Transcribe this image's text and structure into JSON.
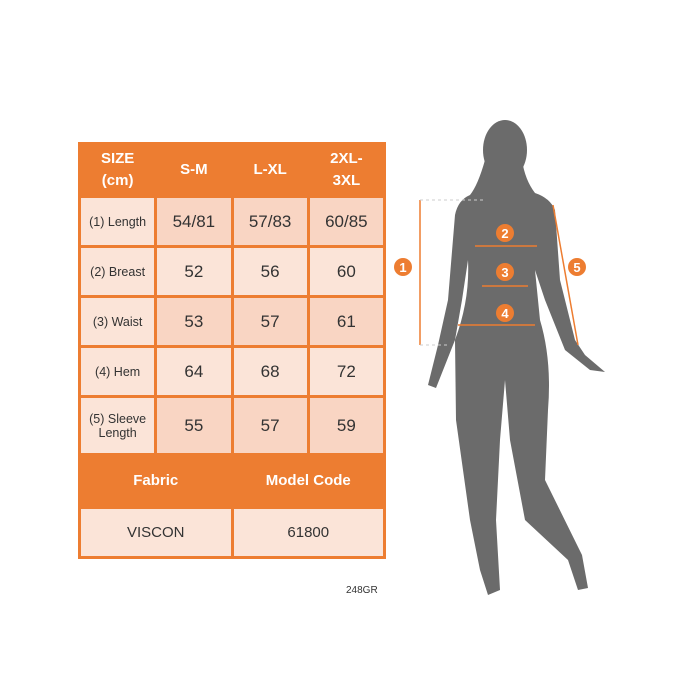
{
  "table": {
    "headers": [
      "SIZE (cm)",
      "S-M",
      "L-XL",
      "2XL-3XL"
    ],
    "rows": [
      {
        "label": "(1) Length",
        "values": [
          "54/81",
          "57/83",
          "60/85"
        ]
      },
      {
        "label": "(2) Breast",
        "values": [
          "52",
          "56",
          "60"
        ]
      },
      {
        "label": "(3) Waist",
        "values": [
          "53",
          "57",
          "61"
        ]
      },
      {
        "label": "(4) Hem",
        "values": [
          "64",
          "68",
          "72"
        ]
      },
      {
        "label": "(5) Sleeve Length",
        "values": [
          "55",
          "57",
          "59"
        ]
      }
    ],
    "footer_headers": [
      "Fabric",
      "Model Code"
    ],
    "footer_values": [
      "VISCON",
      "61800"
    ]
  },
  "product_code": "248GR",
  "markers": [
    "1",
    "2",
    "3",
    "4",
    "5"
  ],
  "colors": {
    "accent": "#ed7d31",
    "silhouette": "#6b6b6b"
  }
}
